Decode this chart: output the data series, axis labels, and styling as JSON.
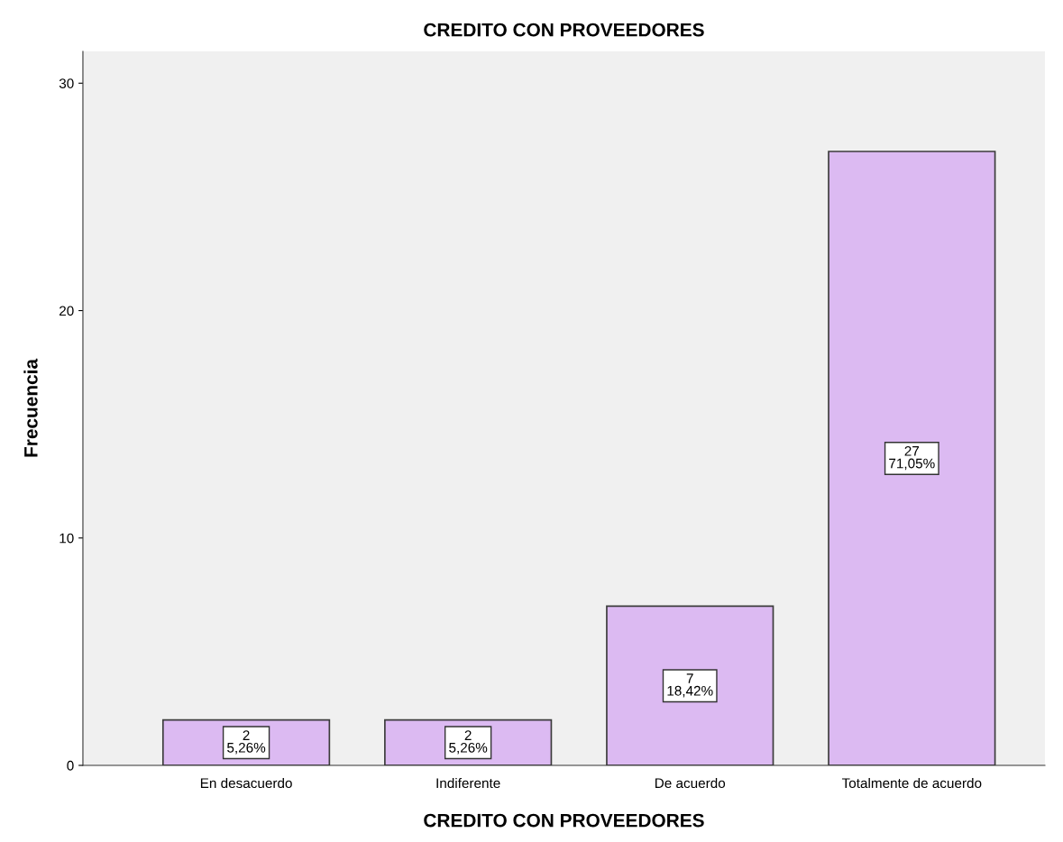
{
  "chart_data": {
    "type": "bar",
    "title": "CREDITO CON PROVEEDORES",
    "xlabel": "CREDITO CON PROVEEDORES",
    "ylabel": "Frecuencia",
    "categories": [
      "En desacuerdo",
      "Indiferente",
      "De acuerdo",
      "Totalmente de acuerdo"
    ],
    "values": [
      2,
      2,
      7,
      27
    ],
    "value_labels": [
      "2\n5,26%",
      "2\n5,26%",
      "7\n18,42%",
      "27\n71,05%"
    ],
    "color": "#dcbaf2",
    "ylim": [
      0,
      31.4
    ],
    "yticks": [
      0,
      10,
      20,
      30
    ],
    "grid": false,
    "legend": false
  }
}
